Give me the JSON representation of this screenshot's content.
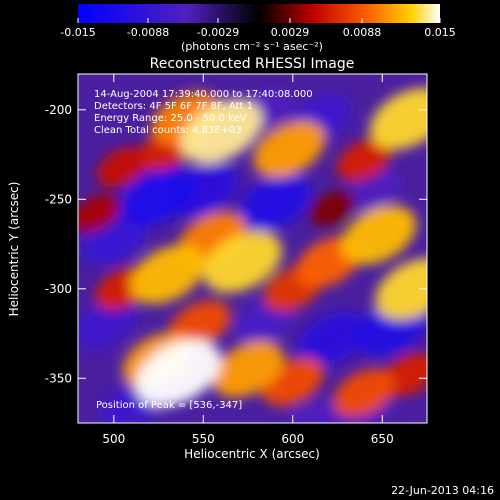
{
  "chart_data": {
    "type": "heatmap",
    "title": "Reconstructed RHESSI Image",
    "xlabel": "Heliocentric X (arcsec)",
    "ylabel": "Heliocentric Y (arcsec)",
    "xlim": [
      480,
      675
    ],
    "ylim": [
      -375,
      -180
    ],
    "x_ticks": [
      500,
      550,
      600,
      650
    ],
    "y_ticks": [
      -200,
      -250,
      -300,
      -350
    ],
    "colorbar": {
      "min": -0.015,
      "max": 0.015,
      "ticks": [
        "-0.015",
        "-0.0088",
        "-0.0029",
        "0.0029",
        "0.0088",
        "0.015"
      ],
      "unit_label": "(photons cm⁻² s⁻¹ asec⁻²)"
    },
    "annotations": [
      "14-Aug-2004 17:39:40.000 to 17:40:08.000",
      "Detectors: 4F 5F 6F 7F 8F, Att 1",
      "Energy Range: 25.0 - 50.0 keV",
      "Clean     Total counts: 4.83E+03"
    ],
    "peak_label": "Position of Peak = [536,-347]",
    "peak_position": [
      536,
      -347
    ],
    "blobs": [
      {
        "x": 540,
        "y": -205,
        "v": 0.01
      },
      {
        "x": 560,
        "y": -212,
        "v": 0.014
      },
      {
        "x": 598,
        "y": -222,
        "v": 0.011
      },
      {
        "x": 640,
        "y": -228,
        "v": 0.006
      },
      {
        "x": 665,
        "y": -205,
        "v": 0.013
      },
      {
        "x": 505,
        "y": -232,
        "v": 0.005
      },
      {
        "x": 530,
        "y": -222,
        "v": 0.006
      },
      {
        "x": 648,
        "y": -270,
        "v": 0.012
      },
      {
        "x": 555,
        "y": -272,
        "v": 0.01
      },
      {
        "x": 572,
        "y": -285,
        "v": 0.013
      },
      {
        "x": 530,
        "y": -292,
        "v": 0.012
      },
      {
        "x": 505,
        "y": -300,
        "v": 0.006
      },
      {
        "x": 620,
        "y": -285,
        "v": 0.009
      },
      {
        "x": 600,
        "y": -300,
        "v": 0.007
      },
      {
        "x": 668,
        "y": -300,
        "v": 0.013
      },
      {
        "x": 548,
        "y": -320,
        "v": 0.008
      },
      {
        "x": 525,
        "y": -340,
        "v": 0.011
      },
      {
        "x": 536,
        "y": -347,
        "v": 0.015
      },
      {
        "x": 575,
        "y": -345,
        "v": 0.011
      },
      {
        "x": 600,
        "y": -352,
        "v": 0.008
      },
      {
        "x": 640,
        "y": -358,
        "v": 0.008
      },
      {
        "x": 665,
        "y": -348,
        "v": 0.006
      },
      {
        "x": 490,
        "y": -258,
        "v": 0.004
      },
      {
        "x": 622,
        "y": -255,
        "v": 0.003
      },
      {
        "x": 585,
        "y": -200,
        "v": -0.006
      },
      {
        "x": 615,
        "y": -205,
        "v": -0.008
      },
      {
        "x": 500,
        "y": -272,
        "v": -0.009
      },
      {
        "x": 525,
        "y": -248,
        "v": -0.012
      },
      {
        "x": 550,
        "y": -245,
        "v": -0.01
      },
      {
        "x": 590,
        "y": -252,
        "v": -0.011
      },
      {
        "x": 495,
        "y": -320,
        "v": -0.008
      },
      {
        "x": 510,
        "y": -365,
        "v": -0.008
      },
      {
        "x": 585,
        "y": -318,
        "v": -0.007
      },
      {
        "x": 622,
        "y": -328,
        "v": -0.01
      },
      {
        "x": 655,
        "y": -322,
        "v": -0.011
      },
      {
        "x": 640,
        "y": -370,
        "v": -0.006
      },
      {
        "x": 610,
        "y": -375,
        "v": -0.006
      },
      {
        "x": 645,
        "y": -245,
        "v": -0.006
      }
    ]
  },
  "footer": {
    "date": "22-Jun-2013 04:16"
  }
}
